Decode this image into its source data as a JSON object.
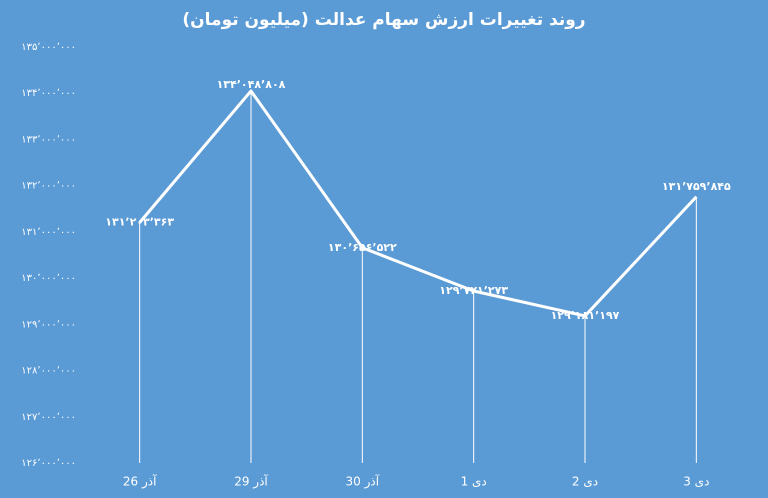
{
  "chart_data": {
    "type": "line",
    "title": "روند تغییرات ارزش سهام عدالت (میلیون تومان)",
    "categories": [
      "26 آذر",
      "29 آذر",
      "30 آذر",
      "1 دی",
      "2 دی",
      "3 دی"
    ],
    "values": [
      131203363,
      134048808,
      130656522,
      129721273,
      129181197,
      131759845
    ],
    "value_labels": [
      "۱۳۱٬۲۰۳٬۳۶۳",
      "۱۳۴٬۰۴۸٬۸۰۸",
      "۱۳۰٬۶۵۶٬۵۲۲",
      "۱۲۹٬۷۲۱٬۲۷۳",
      "۱۲۹٬۱۸۱٬۱۹۷",
      "۱۳۱٬۷۵۹٬۸۴۵"
    ],
    "color": "#ffffff",
    "ylim": [
      126000000,
      135000000
    ],
    "yticks": [
      {
        "value": 126000000,
        "label": "۱۲۶٬۰۰۰٬۰۰۰"
      },
      {
        "value": 127000000,
        "label": "۱۲۷٬۰۰۰٬۰۰۰"
      },
      {
        "value": 128000000,
        "label": "۱۲۸٬۰۰۰٬۰۰۰"
      },
      {
        "value": 129000000,
        "label": "۱۲۹٬۰۰۰٬۰۰۰"
      },
      {
        "value": 130000000,
        "label": "۱۳۰٬۰۰۰٬۰۰۰"
      },
      {
        "value": 131000000,
        "label": "۱۳۱٬۰۰۰٬۰۰۰"
      },
      {
        "value": 132000000,
        "label": "۱۳۲٬۰۰۰٬۰۰۰"
      },
      {
        "value": 133000000,
        "label": "۱۳۳٬۰۰۰٬۰۰۰"
      },
      {
        "value": 134000000,
        "label": "۱۳۴٬۰۰۰٬۰۰۰"
      },
      {
        "value": 135000000,
        "label": "۱۳۵٬۰۰۰٬۰۰۰"
      }
    ],
    "grid": false,
    "drop_lines": true
  }
}
